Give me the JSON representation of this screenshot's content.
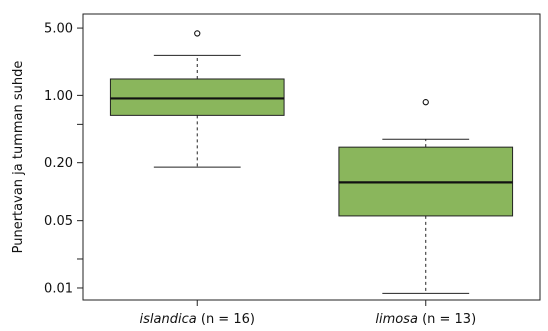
{
  "chart_data": {
    "type": "box",
    "title": "",
    "xlabel": "",
    "ylabel": "Punertavan ja tumman suhde",
    "y_scale": "log",
    "ylim": [
      0.0075,
      7.0
    ],
    "y_ticks": [
      {
        "value": 0.01,
        "label": "0.01"
      },
      {
        "value": 0.05,
        "label": "0.05"
      },
      {
        "value": 0.2,
        "label": "0.20"
      },
      {
        "value": 1.0,
        "label": "1.00"
      },
      {
        "value": 5.0,
        "label": "5.00"
      }
    ],
    "y_minor_ticks": [
      0.02,
      0.5
    ],
    "groups": [
      {
        "name_italic": "islandica",
        "name_rest": " (n = 16)",
        "whisker_low": 0.18,
        "q1": 0.62,
        "median": 0.93,
        "q3": 1.48,
        "whisker_high": 2.6,
        "outliers": [
          4.4
        ]
      },
      {
        "name_italic": "limosa",
        "name_rest": " (n = 13)",
        "whisker_low": 0.0088,
        "q1": 0.056,
        "median": 0.125,
        "q3": 0.29,
        "whisker_high": 0.35,
        "outliers": [
          0.85
        ]
      }
    ],
    "box_color": "#8ab65c",
    "box_border": "#222222",
    "grid": false,
    "legend": "none"
  }
}
